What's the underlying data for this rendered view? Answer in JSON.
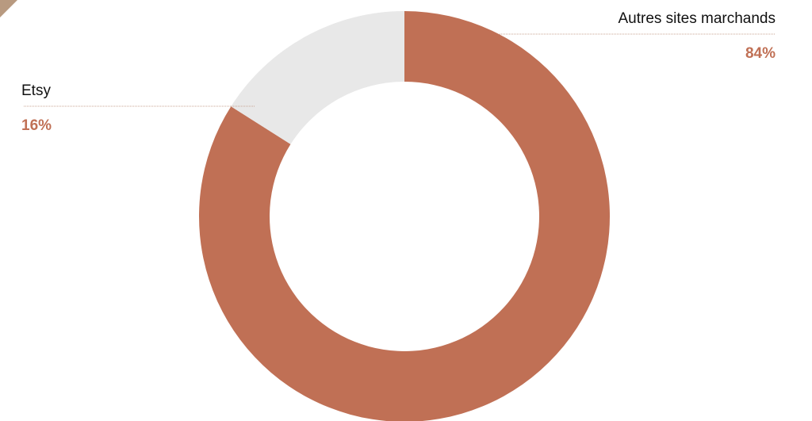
{
  "chart_data": {
    "type": "donut",
    "categories": [
      "Autres sites marchands",
      "Etsy"
    ],
    "values": [
      84,
      16
    ],
    "value_labels": [
      "84%",
      "16%"
    ],
    "colors": [
      "#c07055",
      "#e8e8e8"
    ]
  }
}
